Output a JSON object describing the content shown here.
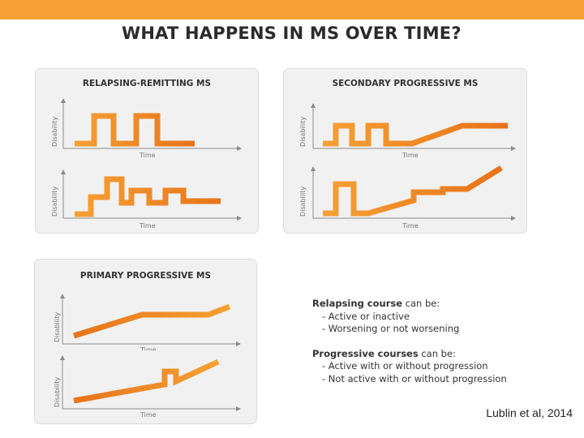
{
  "title": "WHAT HAPPENS IN MS OVER TIME?",
  "axis": {
    "x": "Time",
    "y": "Disability"
  },
  "colors": {
    "accent": "#f7a134",
    "line_light": "#f7a134",
    "line_dark": "#e8731a"
  },
  "panels": {
    "rrms": {
      "title": "RELAPSING-REMITTING MS"
    },
    "spms": {
      "title": "SECONDARY PROGRESSIVE MS"
    },
    "ppms": {
      "title": "PRIMARY PROGRESSIVE MS"
    }
  },
  "notes": {
    "relapsing": {
      "heading_bold": "Relapsing course",
      "heading_rest": " can be:",
      "items": [
        "- Active or inactive",
        "- Worsening or not worsening"
      ]
    },
    "progressive": {
      "heading_bold": "Progressive courses",
      "heading_rest": " can be:",
      "items": [
        "- Active with or without progression",
        "- Not active with or without progression"
      ]
    }
  },
  "citation": "Lublin et al, 2014"
}
